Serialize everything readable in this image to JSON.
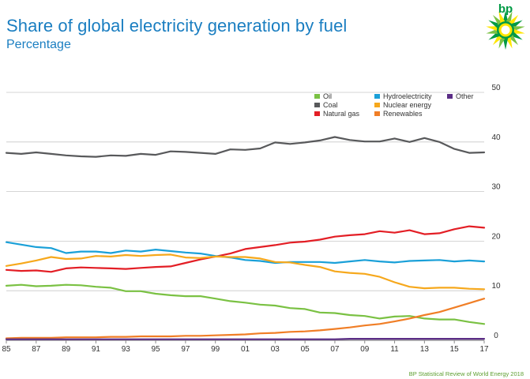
{
  "header": {
    "title": "Share of global electricity generation by fuel",
    "subtitle": "Percentage",
    "logo_text": "bp"
  },
  "footer": {
    "source": "BP Statistical Review of World Energy 2018"
  },
  "chart_data": {
    "type": "line",
    "title": "Share of global electricity generation by fuel",
    "subtitle": "Percentage",
    "xlabel": "",
    "ylabel": "",
    "xlim": [
      1985,
      2017
    ],
    "ylim": [
      0,
      50
    ],
    "x_tick_labels": [
      "85",
      "87",
      "89",
      "91",
      "93",
      "95",
      "97",
      "99",
      "01",
      "03",
      "05",
      "07",
      "09",
      "11",
      "13",
      "15",
      "17"
    ],
    "y_tick_labels": [
      "0",
      "10",
      "20",
      "30",
      "40",
      "50"
    ],
    "grid": "horizontal",
    "legend_position": "top-right",
    "legend_rows": [
      [
        "Oil",
        "Hydroelectricity",
        "Other"
      ],
      [
        "Coal",
        "Nuclear energy"
      ],
      [
        "Natural gas",
        "Renewables"
      ]
    ],
    "x": [
      1985,
      1986,
      1987,
      1988,
      1989,
      1990,
      1991,
      1992,
      1993,
      1994,
      1995,
      1996,
      1997,
      1998,
      1999,
      2000,
      2001,
      2002,
      2003,
      2004,
      2005,
      2006,
      2007,
      2008,
      2009,
      2010,
      2011,
      2012,
      2013,
      2014,
      2015,
      2016,
      2017
    ],
    "series": [
      {
        "name": "Oil",
        "color": "#7ac143",
        "values": [
          11.0,
          11.2,
          10.9,
          11.0,
          11.2,
          11.1,
          10.8,
          10.6,
          9.9,
          9.9,
          9.4,
          9.1,
          8.9,
          8.9,
          8.4,
          7.9,
          7.6,
          7.2,
          7.0,
          6.5,
          6.3,
          5.6,
          5.5,
          5.1,
          4.9,
          4.4,
          4.8,
          4.9,
          4.4,
          4.2,
          4.2,
          3.7,
          3.3
        ]
      },
      {
        "name": "Coal",
        "color": "#58595b",
        "values": [
          37.8,
          37.6,
          37.9,
          37.6,
          37.3,
          37.1,
          37.0,
          37.3,
          37.2,
          37.6,
          37.4,
          38.1,
          38.0,
          37.8,
          37.6,
          38.5,
          38.4,
          38.7,
          39.9,
          39.6,
          39.9,
          40.3,
          41.0,
          40.4,
          40.1,
          40.1,
          40.7,
          40.0,
          40.8,
          40.0,
          38.6,
          37.8,
          37.9
        ]
      },
      {
        "name": "Natural gas",
        "color": "#e31e25",
        "values": [
          14.2,
          14.0,
          14.1,
          13.8,
          14.5,
          14.7,
          14.6,
          14.5,
          14.4,
          14.6,
          14.8,
          14.9,
          15.6,
          16.3,
          16.9,
          17.5,
          18.4,
          18.8,
          19.2,
          19.7,
          19.9,
          20.3,
          20.9,
          21.2,
          21.4,
          22.0,
          21.7,
          22.2,
          21.4,
          21.6,
          22.4,
          23.0,
          22.7
        ]
      },
      {
        "name": "Hydroelectricity",
        "color": "#1aa0d8",
        "values": [
          19.8,
          19.3,
          18.8,
          18.6,
          17.6,
          17.9,
          17.9,
          17.6,
          18.1,
          17.9,
          18.3,
          18.0,
          17.7,
          17.5,
          17.0,
          16.7,
          16.2,
          16.0,
          15.6,
          15.8,
          15.8,
          15.8,
          15.6,
          15.9,
          16.2,
          15.9,
          15.7,
          16.0,
          16.1,
          16.2,
          15.9,
          16.1,
          15.9
        ]
      },
      {
        "name": "Nuclear energy",
        "color": "#f6a81c",
        "values": [
          15.0,
          15.5,
          16.1,
          16.8,
          16.4,
          16.5,
          17.0,
          16.9,
          17.2,
          17.0,
          17.2,
          17.3,
          16.7,
          16.6,
          16.9,
          16.8,
          16.8,
          16.5,
          15.8,
          15.7,
          15.2,
          14.8,
          13.9,
          13.6,
          13.4,
          12.8,
          11.7,
          10.8,
          10.5,
          10.6,
          10.6,
          10.4,
          10.3
        ]
      },
      {
        "name": "Renewables",
        "color": "#f07e26",
        "values": [
          0.4,
          0.5,
          0.5,
          0.5,
          0.6,
          0.6,
          0.6,
          0.7,
          0.7,
          0.8,
          0.8,
          0.8,
          0.9,
          0.9,
          1.0,
          1.1,
          1.2,
          1.4,
          1.5,
          1.7,
          1.8,
          2.0,
          2.3,
          2.6,
          3.0,
          3.3,
          3.8,
          4.4,
          5.1,
          5.7,
          6.6,
          7.5,
          8.4
        ]
      },
      {
        "name": "Other",
        "color": "#5b2d86",
        "values": [
          0.2,
          0.2,
          0.2,
          0.2,
          0.2,
          0.2,
          0.2,
          0.2,
          0.2,
          0.2,
          0.2,
          0.2,
          0.2,
          0.2,
          0.2,
          0.2,
          0.2,
          0.2,
          0.2,
          0.2,
          0.2,
          0.2,
          0.2,
          0.3,
          0.3,
          0.3,
          0.3,
          0.3,
          0.3,
          0.3,
          0.3,
          0.3,
          0.3
        ]
      }
    ]
  }
}
